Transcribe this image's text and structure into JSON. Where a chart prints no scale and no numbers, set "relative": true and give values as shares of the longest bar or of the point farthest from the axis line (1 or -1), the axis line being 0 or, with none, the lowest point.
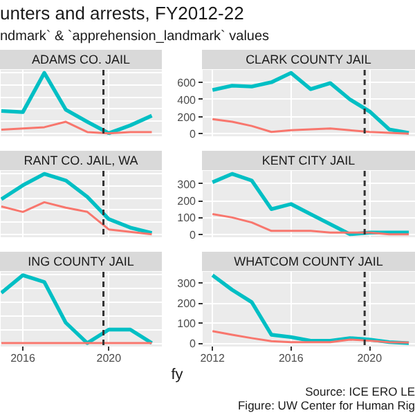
{
  "chart_data": [
    {
      "type": "line",
      "title": "ADAMS CO. JAIL",
      "annotations": [
        "unters and arrests, FY2012-22",
        "ndmark` & `apprehension_landmark` values"
      ],
      "relative": true,
      "x": [
        2015,
        2016,
        2017,
        2018,
        2019,
        2020,
        2021,
        2022
      ],
      "xlim": [
        2014.97,
        2022.5
      ],
      "xticks": [
        2016,
        2020
      ],
      "grid": true,
      "tick_labels": false,
      "series": [
        {
          "color": "#00bfc4",
          "values": [
            0.37,
            0.35,
            1,
            0.39,
            0.19,
            0,
            0.13,
            0.29
          ]
        },
        {
          "color": "#f8766d",
          "values": [
            0.06,
            0.08,
            0.1,
            0.19,
            0.02,
            0,
            0.02,
            0.02
          ]
        }
      ],
      "ref_lines": [
        {
          "axis": "x",
          "value": 2019.75,
          "color": "#333333",
          "line_style": "dashed"
        }
      ]
    },
    {
      "type": "line",
      "title": "CLARK COUNTY JAIL",
      "x": [
        2012,
        2013,
        2014,
        2015,
        2016,
        2017,
        2018,
        2019,
        2020,
        2021,
        2022
      ],
      "xlim": [
        2011.5,
        2022.35
      ],
      "xticks": [
        2012,
        2016,
        2020
      ],
      "ylim": [
        -30,
        745
      ],
      "yticks": [
        0,
        200,
        400,
        600
      ],
      "grid": true,
      "tick_labels": "y",
      "series": [
        {
          "color": "#00bfc4",
          "values": [
            510,
            560,
            550,
            600,
            710,
            520,
            590,
            400,
            260,
            50,
            10
          ]
        },
        {
          "color": "#f8766d",
          "values": [
            170,
            140,
            90,
            20,
            40,
            50,
            60,
            40,
            20,
            10,
            0
          ]
        }
      ],
      "ref_lines": [
        {
          "axis": "x",
          "value": 2019.75,
          "color": "#333333",
          "line_style": "dashed"
        }
      ]
    },
    {
      "type": "line",
      "title": "RANT CO. JAIL, WA",
      "relative": true,
      "x": [
        2015,
        2016,
        2017,
        2018,
        2019,
        2020,
        2021,
        2022
      ],
      "xlim": [
        2014.97,
        2022.5
      ],
      "xticks": [
        2016,
        2020
      ],
      "grid": true,
      "tick_labels": false,
      "series": [
        {
          "color": "#00bfc4",
          "values": [
            0.58,
            0.81,
            1,
            0.89,
            0.62,
            0.25,
            0.11,
            0.02
          ]
        },
        {
          "color": "#f8766d",
          "values": [
            0.46,
            0.37,
            0.53,
            0.44,
            0.37,
            0.08,
            0.04,
            0
          ]
        }
      ],
      "ref_lines": [
        {
          "axis": "x",
          "value": 2019.75,
          "color": "#333333",
          "line_style": "dashed"
        }
      ]
    },
    {
      "type": "line",
      "title": "KENT CITY JAIL",
      "x": [
        2012,
        2013,
        2014,
        2015,
        2016,
        2017,
        2018,
        2019,
        2020,
        2021,
        2022
      ],
      "xlim": [
        2011.5,
        2022.35
      ],
      "xticks": [
        2012,
        2016,
        2020
      ],
      "ylim": [
        -18,
        378
      ],
      "yticks": [
        0,
        100,
        200,
        300
      ],
      "grid": true,
      "tick_labels": "y",
      "series": [
        {
          "color": "#00bfc4",
          "values": [
            310,
            360,
            320,
            150,
            180,
            120,
            60,
            0,
            10,
            10,
            10
          ]
        },
        {
          "color": "#f8766d",
          "values": [
            120,
            100,
            70,
            20,
            20,
            20,
            10,
            10,
            10,
            0,
            0
          ]
        }
      ],
      "ref_lines": [
        {
          "axis": "x",
          "value": 2019.75,
          "color": "#333333",
          "line_style": "dashed"
        }
      ]
    },
    {
      "type": "line",
      "title": "ING COUNTY JAIL",
      "relative": true,
      "x": [
        2015,
        2016,
        2017,
        2018,
        2019,
        2020,
        2021,
        2022
      ],
      "xlim": [
        2014.97,
        2022.5
      ],
      "xticks": [
        2016,
        2020
      ],
      "grid": true,
      "tick_labels": "x",
      "series": [
        {
          "color": "#00bfc4",
          "values": [
            0.74,
            1,
            0.9,
            0.3,
            0,
            0.2,
            0.2,
            0
          ]
        },
        {
          "color": "#f8766d",
          "values": [
            0,
            0,
            0,
            0,
            0,
            0,
            0,
            0
          ]
        }
      ],
      "ref_lines": [
        {
          "axis": "x",
          "value": 2019.75,
          "color": "#333333",
          "line_style": "dashed"
        }
      ]
    },
    {
      "type": "line",
      "title": "WHATCOM COUNTY JAIL",
      "xlabel": "fy",
      "annotations": [
        "Source: ICE ERO LE",
        "Figure: UW Center for Human Rig"
      ],
      "x": [
        2012,
        2013,
        2014,
        2015,
        2016,
        2017,
        2018,
        2019,
        2020,
        2021,
        2022
      ],
      "xlim": [
        2011.5,
        2022.35
      ],
      "xticks": [
        2012,
        2016,
        2020
      ],
      "ylim": [
        -17,
        357
      ],
      "yticks": [
        0,
        100,
        200,
        300
      ],
      "grid": true,
      "series": [
        {
          "color": "#00bfc4",
          "values": [
            340,
            267,
            205,
            42,
            30,
            12,
            12,
            25,
            18,
            5,
            0
          ]
        },
        {
          "color": "#f8766d",
          "values": [
            60,
            42,
            25,
            10,
            5,
            5,
            5,
            18,
            12,
            5,
            3
          ]
        }
      ],
      "ref_lines": [
        {
          "axis": "x",
          "value": 2019.75,
          "color": "#333333",
          "line_style": "dashed"
        }
      ]
    }
  ]
}
